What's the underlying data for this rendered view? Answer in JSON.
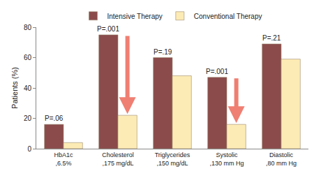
{
  "chart_data": {
    "type": "bar",
    "y_label": "Patients (%)",
    "categories": [
      "HbA1c\n,6.5%",
      "Cholesterol\n,175 mg/dL",
      "Triglycerides\n,150 mg/dL",
      "Systolic\n,130 mm Hg",
      "Diastolic\n,80 mm Hg"
    ],
    "series": [
      {
        "name": "Intensive Therapy",
        "color": "#8b4b4b",
        "values": [
          16,
          75,
          60,
          47,
          69
        ]
      },
      {
        "name": "Conventional Therapy",
        "color": "#fdebb5",
        "values": [
          4,
          22,
          48,
          16,
          59
        ]
      }
    ],
    "ylim": [
      0,
      80
    ],
    "yticks": [
      0,
      20,
      40,
      60,
      80
    ],
    "grid": false,
    "legend": "top",
    "annotations": [
      {
        "text": "P=.06",
        "category": 0
      },
      {
        "text": "P=.001",
        "category": 1,
        "arrow": true
      },
      {
        "text": "P=.19",
        "category": 2
      },
      {
        "text": "P=.001",
        "category": 3,
        "arrow": true
      },
      {
        "text": "P=.21",
        "category": 4
      }
    ]
  }
}
